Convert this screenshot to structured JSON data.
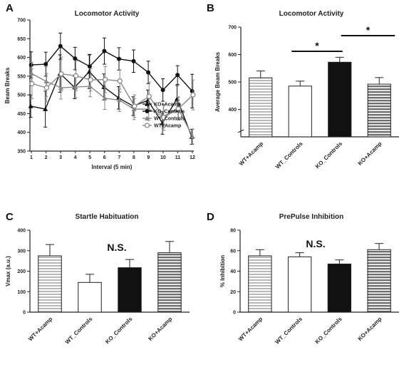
{
  "chart_data": [
    {
      "panel": "A",
      "type": "line",
      "title": "Locomotor Activity",
      "xlabel": "Interval (5 min)",
      "ylabel": "Beam Breaks",
      "x": [
        1,
        2,
        3,
        4,
        5,
        6,
        7,
        8,
        9,
        10,
        11,
        12
      ],
      "xticks": [
        "1",
        "2",
        "3",
        "4",
        "5",
        "6",
        "7",
        "8",
        "9",
        "10",
        "11",
        "12"
      ],
      "ylim": [
        350,
        700
      ],
      "yticks": [
        350,
        400,
        450,
        500,
        550,
        600,
        650,
        700
      ],
      "legend_position": "right",
      "series": [
        {
          "name": "KO+Acamp",
          "marker": "triangle",
          "color": "#111111",
          "values": [
            470,
            462,
            557,
            520,
            562,
            521,
            492,
            470,
            485,
            425,
            490,
            388
          ],
          "err": [
            30,
            48,
            50,
            30,
            45,
            35,
            30,
            25,
            28,
            30,
            35,
            20
          ]
        },
        {
          "name": "KO_Controls",
          "marker": "circle",
          "color": "#111111",
          "values": [
            580,
            582,
            630,
            597,
            576,
            617,
            596,
            590,
            560,
            513,
            553,
            510
          ],
          "err": [
            35,
            32,
            35,
            30,
            32,
            35,
            30,
            30,
            30,
            30,
            25,
            45
          ]
        },
        {
          "name": "WT_Controls",
          "marker": "triangle",
          "color": "#888888",
          "values": [
            557,
            536,
            519,
            521,
            523,
            491,
            486,
            462,
            462,
            442,
            465,
            389
          ],
          "err": [
            30,
            40,
            30,
            28,
            28,
            30,
            30,
            28,
            30,
            30,
            30,
            20
          ]
        },
        {
          "name": "WT+Acamp",
          "marker": "circle-open",
          "color": "#888888",
          "values": [
            530,
            519,
            556,
            551,
            540,
            541,
            537,
            470,
            496,
            440,
            463,
            500
          ],
          "err": [
            40,
            38,
            45,
            40,
            30,
            35,
            30,
            30,
            38,
            35,
            30,
            40
          ]
        }
      ]
    },
    {
      "panel": "B",
      "type": "bar",
      "title": "Locomotor Activity",
      "ylabel": "Average Beam Breaks",
      "categories": [
        "WT+Acamp",
        "WT_Controls",
        "KO_Controls",
        "KO+Acamp"
      ],
      "values": [
        515,
        485,
        572,
        492
      ],
      "err": [
        25,
        18,
        18,
        24
      ],
      "ylim": [
        300,
        700
      ],
      "yticks": [
        400,
        500,
        600,
        700
      ],
      "significance": [
        "*",
        "*"
      ]
    },
    {
      "panel": "C",
      "type": "bar",
      "title": "Startle Habituation",
      "ylabel": "Vmax (a.u.)",
      "categories": [
        "WT+Acamp",
        "WT_Controls",
        "KO_Controls",
        "KO+Acamp"
      ],
      "values": [
        275,
        145,
        217,
        290
      ],
      "err": [
        55,
        40,
        40,
        55
      ],
      "ylim": [
        0,
        400
      ],
      "yticks": [
        0,
        100,
        200,
        300,
        400
      ],
      "annotation": "N.S."
    },
    {
      "panel": "D",
      "type": "bar",
      "title": "PrePulse Inhibition",
      "ylabel": "% Inhibition",
      "categories": [
        "WT+Acamp",
        "WT_Controls",
        "KO_Controls",
        "KO+Acamp"
      ],
      "values": [
        55,
        54,
        47,
        61
      ],
      "err": [
        6,
        4,
        4,
        6
      ],
      "ylim": [
        0,
        80
      ],
      "yticks": [
        0,
        20,
        40,
        60,
        80
      ],
      "annotation": "N.S."
    }
  ],
  "styles": {
    "bar_fills": [
      "hstripe-light",
      "white",
      "black",
      "hstripe-dark"
    ],
    "colors": {
      "black": "#111111",
      "gray": "#888888",
      "light_stripe": "#bbbbbb",
      "dark_stripe": "#777777"
    }
  }
}
